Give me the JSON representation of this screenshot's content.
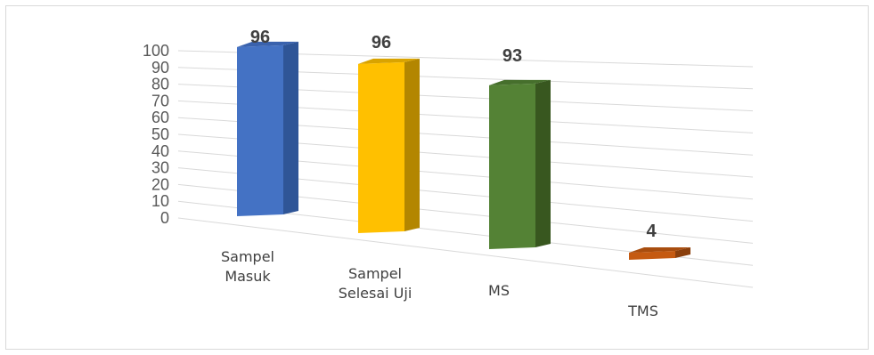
{
  "chart_data": {
    "type": "bar",
    "title": "",
    "xlabel": "",
    "ylabel": "",
    "categories": [
      [
        "Sampel",
        "Masuk"
      ],
      [
        "Sampel",
        "Selesai Uji"
      ],
      [
        "MS"
      ],
      [
        "TMS"
      ]
    ],
    "values": [
      96,
      96,
      93,
      4
    ],
    "data_labels": [
      "96",
      "96",
      "93",
      "4"
    ],
    "ylim": [
      0,
      100
    ],
    "yticks": [
      "0",
      "10",
      "20",
      "30",
      "40",
      "50",
      "60",
      "70",
      "80",
      "90",
      "100"
    ],
    "grid": true,
    "legend": "none",
    "style": "3d-perspective",
    "colors": [
      {
        "front": "#4472c4",
        "side": "#2f5597",
        "top": "#3a62ad"
      },
      {
        "front": "#ffc000",
        "side": "#b38600",
        "top": "#d9a300"
      },
      {
        "front": "#548235",
        "side": "#38571f",
        "top": "#466f2c"
      },
      {
        "front": "#c55a11",
        "side": "#8a3f0c",
        "top": "#a84d0f"
      }
    ]
  }
}
